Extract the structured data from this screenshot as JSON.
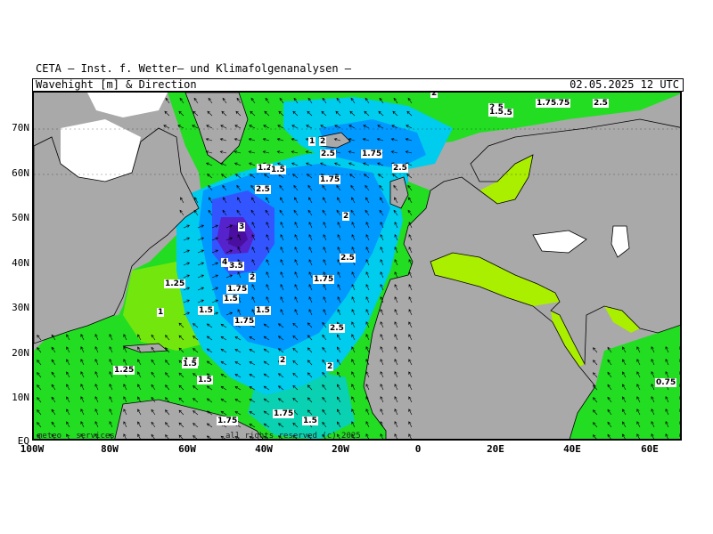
{
  "header": {
    "title": "CETA – Inst. f. Wetter– und Klimafolgenanalysen –",
    "subtitle": "Wavehight [m] & Direction",
    "datetime": "02.05.2025 12 UTC"
  },
  "axes": {
    "lat_labels": [
      "70N",
      "60N",
      "50N",
      "40N",
      "30N",
      "20N",
      "10N",
      "EQ"
    ],
    "lon_labels": [
      "100W",
      "80W",
      "60W",
      "40W",
      "20W",
      "0",
      "20E",
      "40E",
      "60E"
    ]
  },
  "footer": {
    "left": "meteo - services",
    "right": "all rights reserved (c) 2025"
  },
  "colors": {
    "land": "#a9a9a9",
    "ice": "#ffffff",
    "low": "#22dd22",
    "mid": "#aaee00",
    "blue1": "#00ccee",
    "blue2": "#0099ff",
    "blue3": "#3355ff",
    "blue4": "#5522cc"
  },
  "wave_labels": [
    "1.75",
    "2.5",
    "2",
    "2.5",
    "1.5",
    "1",
    "2",
    "2.5",
    "1.75",
    "2.5",
    "1.2",
    "1.5",
    "2.5",
    "1.75",
    "2",
    "2.5",
    "3",
    "4",
    "3.5",
    "2",
    "1.25",
    "1.75",
    "1.5",
    "1",
    "1.5",
    "1.5",
    "1.75",
    "1.75",
    "2.5",
    "1.5",
    "2",
    "1.25",
    "1.5",
    "1.5",
    "2",
    "1.75",
    "1.75",
    "1.5",
    "0.75",
    "2.5",
    "1.75",
    "1.5"
  ]
}
